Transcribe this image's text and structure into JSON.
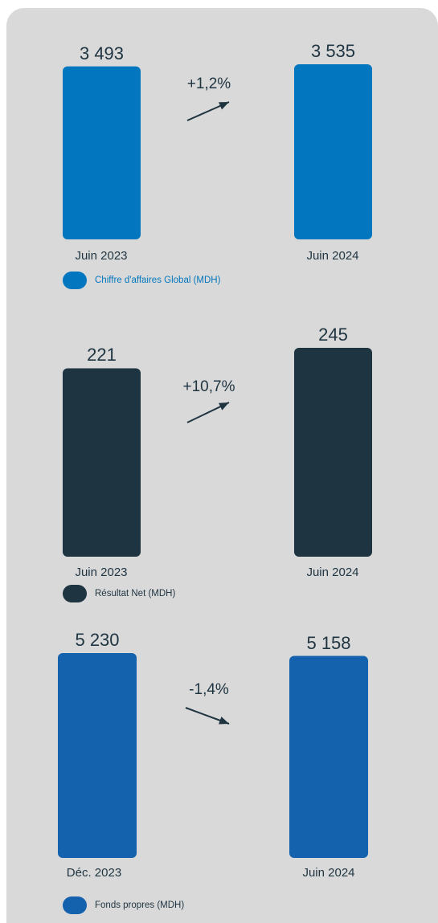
{
  "chart_data": [
    {
      "type": "bar",
      "categories": [
        "Juin 2023",
        "Juin 2024"
      ],
      "values": [
        3493,
        3535
      ],
      "value_labels": [
        "3 493",
        "3 535"
      ],
      "change_label": "+1,2%",
      "trend": "up",
      "legend": "Chiffre d'affaires Global (MDH)",
      "color": "#0277bf",
      "legend_text_color": "#0277bf"
    },
    {
      "type": "bar",
      "categories": [
        "Juin 2023",
        "Juin 2024"
      ],
      "values": [
        221,
        245
      ],
      "value_labels": [
        "221",
        "245"
      ],
      "change_label": "+10,7%",
      "trend": "up",
      "legend": "Résultat Net (MDH)",
      "color": "#1f3441",
      "legend_text_color": "#1f3441"
    },
    {
      "type": "bar",
      "categories": [
        "Déc. 2023",
        "Juin 2024"
      ],
      "values": [
        5230,
        5158
      ],
      "value_labels": [
        "5 230",
        "5 158"
      ],
      "change_label": "-1,4%",
      "trend": "down",
      "legend": "Fonds propres (MDH)",
      "color": "#1462ad",
      "legend_text_color": "#1f3441"
    }
  ],
  "arrow_color": "#1f3441",
  "panel_color": "#d9d9d9"
}
